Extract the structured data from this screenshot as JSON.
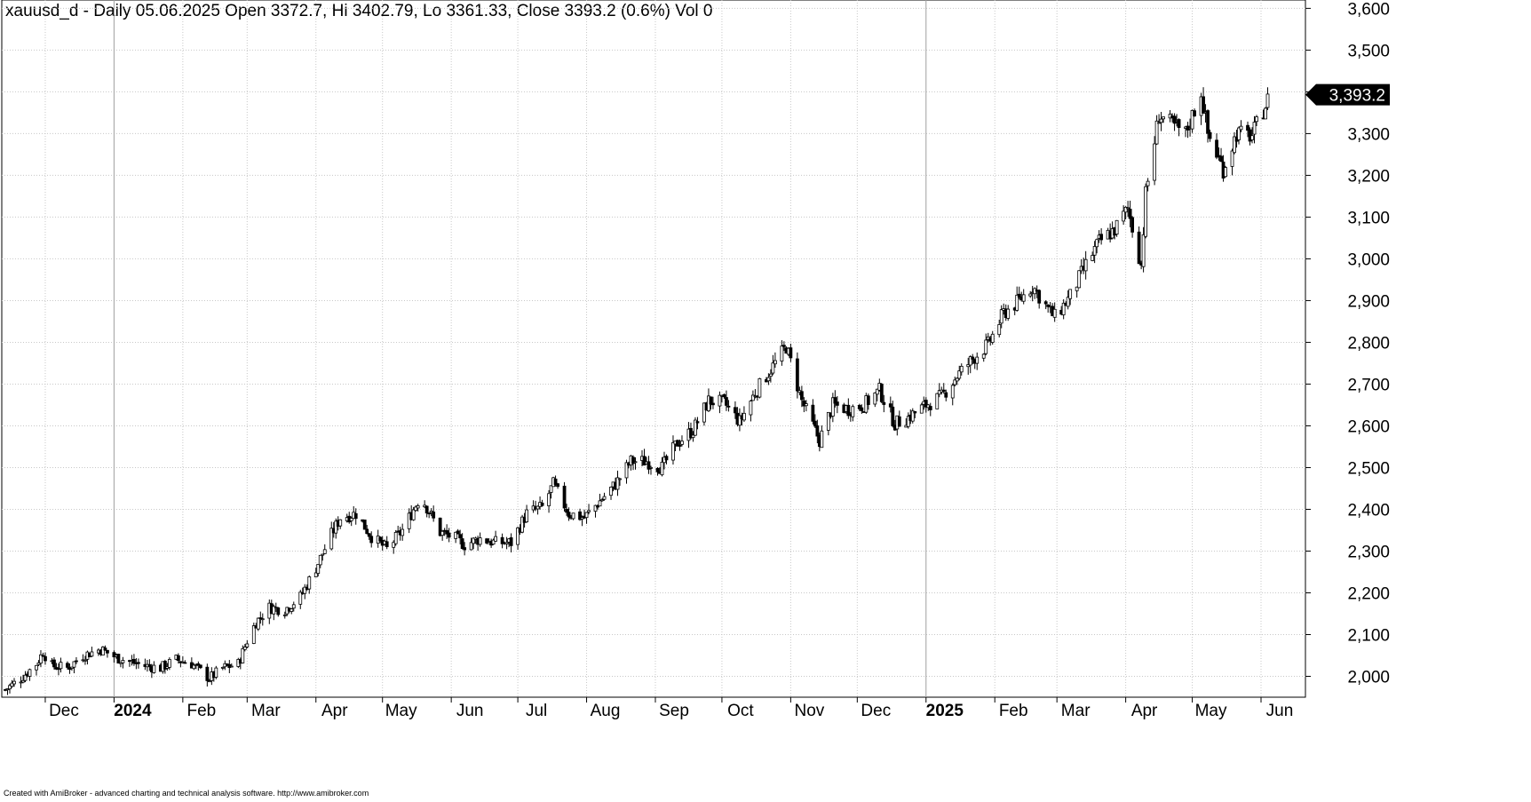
{
  "header": {
    "title": "xauusd_d - Daily 05.06.2025 Open 3372.7, Hi 3402.79, Lo 3361.33, Close 3393.2 (0.6%) Vol 0"
  },
  "footer": {
    "credit": "Created with AmiBroker - advanced charting and technical analysis software. http://www.amibroker.com"
  },
  "chart_data": {
    "type": "candlestick",
    "title": "",
    "xlabel": "",
    "ylabel": "",
    "ylim": [
      1950,
      3620
    ],
    "grid": true,
    "y_ticks": [
      2000,
      2100,
      2200,
      2300,
      2400,
      2500,
      2600,
      2700,
      2800,
      2900,
      3000,
      3100,
      3200,
      3300,
      3400,
      3500,
      3600
    ],
    "y_tick_labels": [
      "2,000",
      "2,100",
      "2,200",
      "2,300",
      "2,400",
      "2,500",
      "2,600",
      "2,700",
      "2,800",
      "2,900",
      "3,000",
      "3,100",
      "3,200",
      "3,300",
      "3,400",
      "3,500",
      "3,600"
    ],
    "x_ticks": [
      {
        "label": "Dec",
        "date": "2023-12-01",
        "bold": false
      },
      {
        "label": "2024",
        "date": "2024-01-01",
        "bold": true
      },
      {
        "label": "Feb",
        "date": "2024-02-01",
        "bold": false
      },
      {
        "label": "Mar",
        "date": "2024-03-01",
        "bold": false
      },
      {
        "label": "Apr",
        "date": "2024-04-01",
        "bold": false
      },
      {
        "label": "May",
        "date": "2024-05-01",
        "bold": false
      },
      {
        "label": "Jun",
        "date": "2024-06-01",
        "bold": false
      },
      {
        "label": "Jul",
        "date": "2024-07-01",
        "bold": false
      },
      {
        "label": "Aug",
        "date": "2024-08-01",
        "bold": false
      },
      {
        "label": "Sep",
        "date": "2024-09-01",
        "bold": false
      },
      {
        "label": "Oct",
        "date": "2024-10-01",
        "bold": false
      },
      {
        "label": "Nov",
        "date": "2024-11-01",
        "bold": false
      },
      {
        "label": "Dec",
        "date": "2024-12-01",
        "bold": false
      },
      {
        "label": "2025",
        "date": "2025-01-01",
        "bold": true
      },
      {
        "label": "Feb",
        "date": "2025-02-01",
        "bold": false
      },
      {
        "label": "Mar",
        "date": "2025-03-01",
        "bold": false
      },
      {
        "label": "Apr",
        "date": "2025-04-01",
        "bold": false
      },
      {
        "label": "May",
        "date": "2025-05-01",
        "bold": false
      },
      {
        "label": "Jun",
        "date": "2025-06-01",
        "bold": false
      }
    ],
    "last_value": 3393.2,
    "last_value_label": "3,393.2",
    "series": [
      {
        "x": [
          "2023-11-13",
          "2023-11-20",
          "2023-11-27",
          "2023-11-30",
          "2023-12-04",
          "2023-12-11",
          "2023-12-18",
          "2023-12-26",
          "2024-01-02",
          "2024-01-08",
          "2024-01-15",
          "2024-01-22",
          "2024-01-29",
          "2024-02-05",
          "2024-02-13",
          "2024-02-19",
          "2024-02-26",
          "2024-03-01",
          "2024-03-05",
          "2024-03-11",
          "2024-03-18",
          "2024-03-25",
          "2024-04-01",
          "2024-04-08",
          "2024-04-12",
          "2024-04-19",
          "2024-04-26",
          "2024-05-03",
          "2024-05-10",
          "2024-05-17",
          "2024-05-20",
          "2024-05-27",
          "2024-06-03",
          "2024-06-07",
          "2024-06-14",
          "2024-06-21",
          "2024-06-28",
          "2024-07-05",
          "2024-07-12",
          "2024-07-17",
          "2024-07-24",
          "2024-07-31",
          "2024-08-07",
          "2024-08-14",
          "2024-08-21",
          "2024-08-28",
          "2024-09-04",
          "2024-09-11",
          "2024-09-18",
          "2024-09-25",
          "2024-10-02",
          "2024-10-09",
          "2024-10-16",
          "2024-10-23",
          "2024-10-30",
          "2024-11-06",
          "2024-11-14",
          "2024-11-20",
          "2024-11-27",
          "2024-12-04",
          "2024-12-11",
          "2024-12-18",
          "2024-12-24",
          "2025-01-01",
          "2025-01-08",
          "2025-01-15",
          "2025-01-22",
          "2025-01-29",
          "2025-02-05",
          "2025-02-11",
          "2025-02-18",
          "2025-02-25",
          "2025-02-28",
          "2025-03-07",
          "2025-03-14",
          "2025-03-20",
          "2025-03-27",
          "2025-04-02",
          "2025-04-08",
          "2025-04-10",
          "2025-04-16",
          "2025-04-22",
          "2025-04-28",
          "2025-05-05",
          "2025-05-08",
          "2025-05-15",
          "2025-05-21",
          "2025-05-28",
          "2025-06-05"
        ],
        "close": [
          1968,
          1995,
          2030,
          2058,
          2025,
          2020,
          2050,
          2065,
          2045,
          2035,
          2025,
          2020,
          2040,
          2030,
          1995,
          2020,
          2030,
          2085,
          2130,
          2165,
          2160,
          2190,
          2260,
          2340,
          2380,
          2390,
          2335,
          2305,
          2350,
          2420,
          2415,
          2345,
          2330,
          2315,
          2330,
          2320,
          2320,
          2390,
          2405,
          2460,
          2390,
          2380,
          2420,
          2460,
          2515,
          2515,
          2500,
          2560,
          2590,
          2660,
          2655,
          2610,
          2680,
          2735,
          2790,
          2660,
          2565,
          2650,
          2640,
          2650,
          2685,
          2605,
          2620,
          2650,
          2670,
          2720,
          2760,
          2795,
          2870,
          2895,
          2935,
          2880,
          2860,
          2910,
          2985,
          3040,
          3070,
          3120,
          2985,
          3155,
          3345,
          3320,
          3300,
          3400,
          3300,
          3215,
          3300,
          3295,
          3393
        ]
      }
    ]
  }
}
